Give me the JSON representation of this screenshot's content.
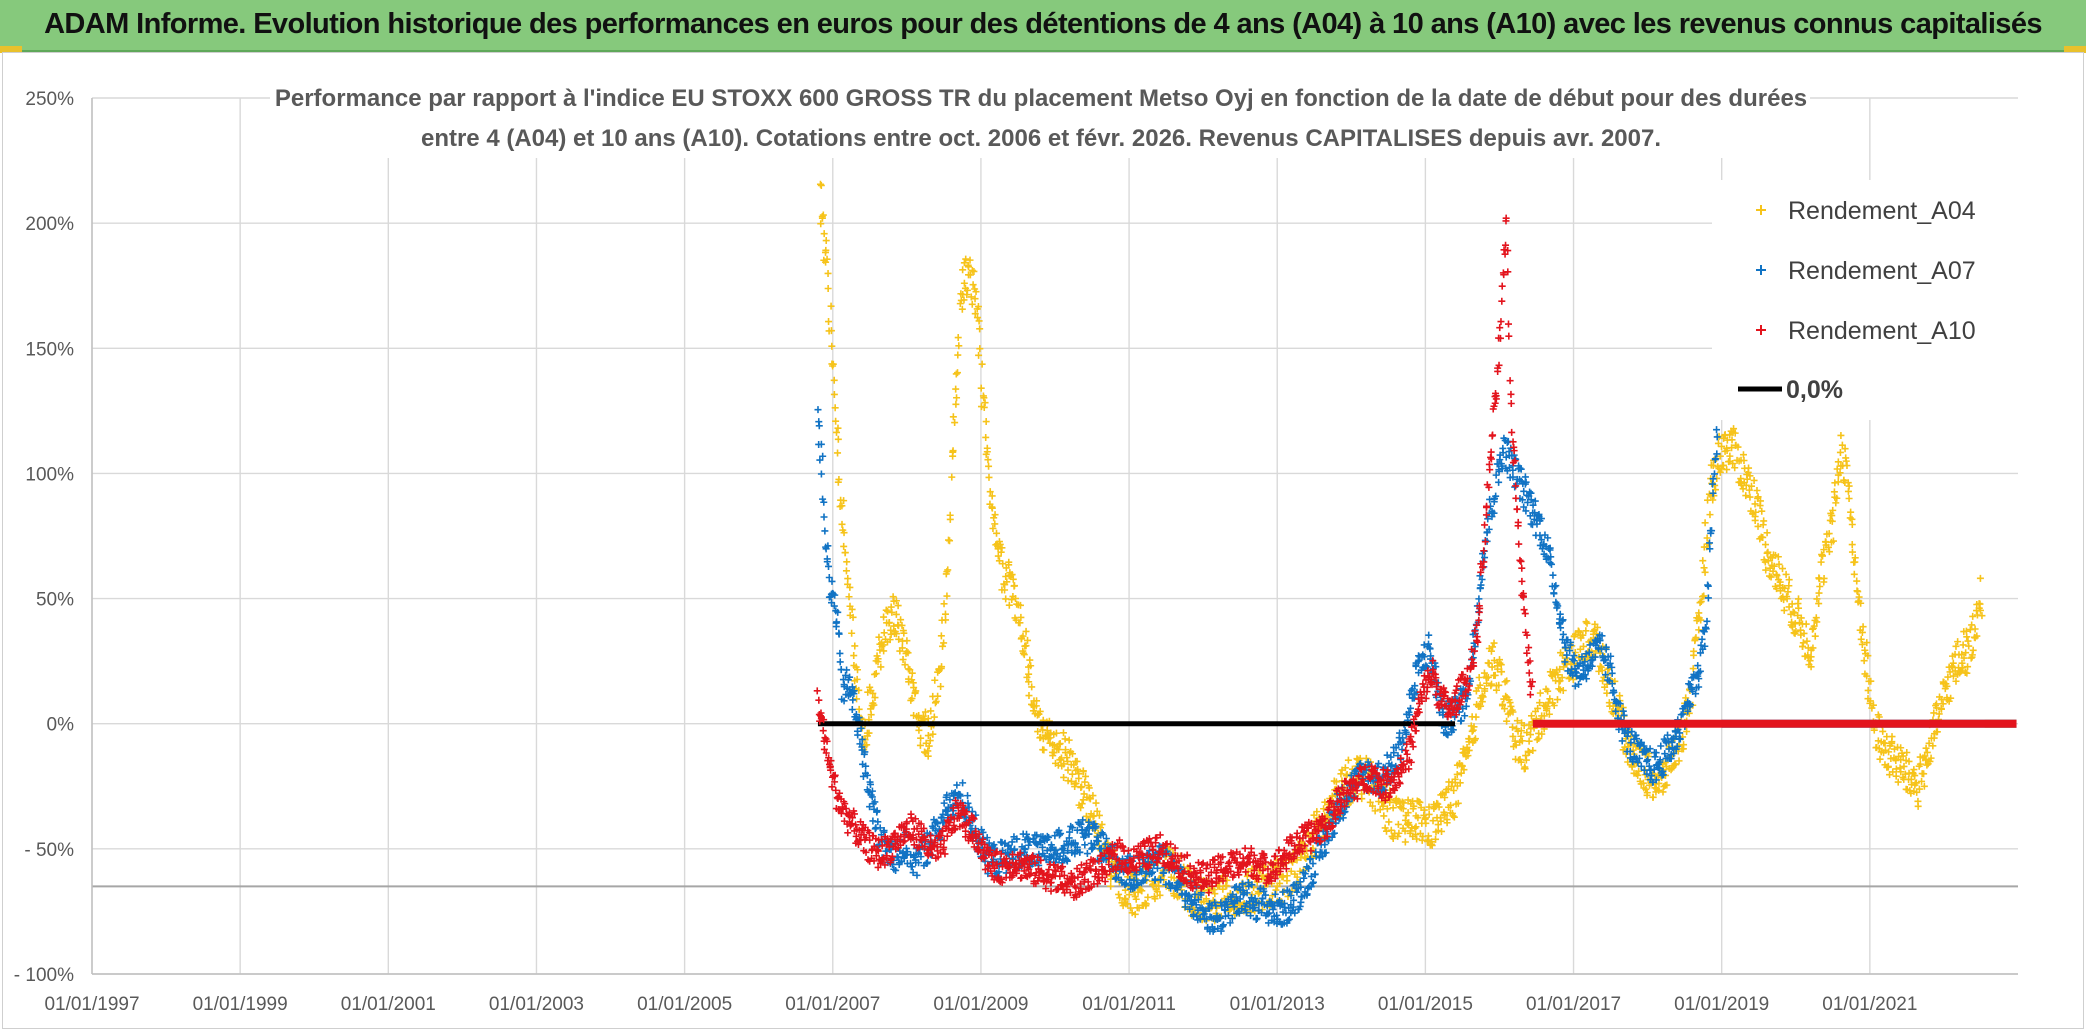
{
  "header": {
    "title": "ADAM Informe. Evolution historique des performances en euros pour des détentions de 4 ans (A04) à 10 ans (A10) avec les revenus connus capitalisés"
  },
  "colors": {
    "banner": "#86c97c",
    "a04": "#f6c31a",
    "a07": "#1173c4",
    "a10": "#e3141d",
    "zero": "#000000",
    "grid": "#d9d9d9"
  },
  "chart_data": {
    "type": "scatter",
    "title_lines": [
      "Performance par rapport à l'indice EU STOXX 600 GROSS TR  du placement Metso Oyj en fonction de la date de début pour des durées",
      "entre 4 (A04) et 10 ans (A10). Cotations entre oct. 2006 et févr. 2026. Revenus CAPITALISES depuis avr. 2007."
    ],
    "x_range": [
      1997.0,
      2023.0
    ],
    "y_range": [
      -100,
      250
    ],
    "y_ticks": [
      {
        "value": 250,
        "label": "250%"
      },
      {
        "value": 200,
        "label": "200%"
      },
      {
        "value": 150,
        "label": "150%"
      },
      {
        "value": 100,
        "label": "100%"
      },
      {
        "value": 50,
        "label": "50%"
      },
      {
        "value": 0,
        "label": "0%"
      },
      {
        "value": -50,
        "label": "- 50%"
      },
      {
        "value": -100,
        "label": "- 100%"
      }
    ],
    "x_ticks": [
      {
        "value": 1997,
        "label": "01/01/1997"
      },
      {
        "value": 1999,
        "label": "01/01/1999"
      },
      {
        "value": 2001,
        "label": "01/01/2001"
      },
      {
        "value": 2003,
        "label": "01/01/2003"
      },
      {
        "value": 2005,
        "label": "01/01/2005"
      },
      {
        "value": 2007,
        "label": "01/01/2007"
      },
      {
        "value": 2009,
        "label": "01/01/2009"
      },
      {
        "value": 2011,
        "label": "01/01/2011"
      },
      {
        "value": 2013,
        "label": "01/01/2013"
      },
      {
        "value": 2015,
        "label": "01/01/2015"
      },
      {
        "value": 2017,
        "label": "01/01/2017"
      },
      {
        "value": 2019,
        "label": "01/01/2019"
      },
      {
        "value": 2021,
        "label": "01/01/2021"
      }
    ],
    "reference_line_value": -65,
    "series": [
      {
        "key": "a04",
        "name": "Rendement_A04",
        "color": "#f6c31a",
        "jitter": 9,
        "points": [
          [
            2006.83,
            210
          ],
          [
            2006.92,
            185
          ],
          [
            2007.0,
            140
          ],
          [
            2007.1,
            95
          ],
          [
            2007.2,
            60
          ],
          [
            2007.3,
            25
          ],
          [
            2007.42,
            -5
          ],
          [
            2007.55,
            15
          ],
          [
            2007.7,
            40
          ],
          [
            2007.85,
            45
          ],
          [
            2008.0,
            25
          ],
          [
            2008.15,
            0
          ],
          [
            2008.3,
            -5
          ],
          [
            2008.45,
            20
          ],
          [
            2008.55,
            60
          ],
          [
            2008.65,
            130
          ],
          [
            2008.75,
            175
          ],
          [
            2008.85,
            180
          ],
          [
            2008.95,
            165
          ],
          [
            2009.05,
            120
          ],
          [
            2009.15,
            85
          ],
          [
            2009.3,
            60
          ],
          [
            2009.45,
            50
          ],
          [
            2009.6,
            30
          ],
          [
            2009.75,
            0
          ],
          [
            2009.9,
            -5
          ],
          [
            2010.05,
            -10
          ],
          [
            2010.2,
            -15
          ],
          [
            2010.35,
            -25
          ],
          [
            2010.5,
            -35
          ],
          [
            2010.65,
            -50
          ],
          [
            2010.8,
            -60
          ],
          [
            2010.95,
            -65
          ],
          [
            2011.1,
            -68
          ],
          [
            2011.3,
            -62
          ],
          [
            2011.5,
            -58
          ],
          [
            2011.7,
            -62
          ],
          [
            2011.9,
            -70
          ],
          [
            2012.1,
            -72
          ],
          [
            2012.3,
            -68
          ],
          [
            2012.5,
            -70
          ],
          [
            2012.7,
            -66
          ],
          [
            2012.9,
            -65
          ],
          [
            2013.1,
            -62
          ],
          [
            2013.3,
            -55
          ],
          [
            2013.5,
            -45
          ],
          [
            2013.7,
            -35
          ],
          [
            2013.9,
            -25
          ],
          [
            2014.1,
            -20
          ],
          [
            2014.3,
            -25
          ],
          [
            2014.5,
            -35
          ],
          [
            2014.7,
            -40
          ],
          [
            2014.9,
            -38
          ],
          [
            2015.05,
            -42
          ],
          [
            2015.25,
            -35
          ],
          [
            2015.45,
            -25
          ],
          [
            2015.6,
            -10
          ],
          [
            2015.75,
            15
          ],
          [
            2015.9,
            25
          ],
          [
            2016.05,
            15
          ],
          [
            2016.2,
            -5
          ],
          [
            2016.35,
            -10
          ],
          [
            2016.5,
            0
          ],
          [
            2016.65,
            10
          ],
          [
            2016.8,
            20
          ],
          [
            2016.95,
            25
          ],
          [
            2017.1,
            30
          ],
          [
            2017.25,
            35
          ],
          [
            2017.4,
            25
          ],
          [
            2017.55,
            10
          ],
          [
            2017.7,
            -5
          ],
          [
            2017.85,
            -15
          ],
          [
            2018.0,
            -20
          ],
          [
            2018.15,
            -25
          ],
          [
            2018.3,
            -15
          ],
          [
            2018.45,
            -5
          ],
          [
            2018.6,
            15
          ],
          [
            2018.75,
            60
          ],
          [
            2018.85,
            95
          ],
          [
            2019.0,
            110
          ],
          [
            2019.15,
            110
          ],
          [
            2019.3,
            100
          ],
          [
            2019.45,
            90
          ],
          [
            2019.6,
            70
          ],
          [
            2019.75,
            60
          ],
          [
            2019.9,
            50
          ],
          [
            2020.05,
            40
          ],
          [
            2020.2,
            30
          ],
          [
            2020.35,
            60
          ],
          [
            2020.5,
            80
          ],
          [
            2020.6,
            110
          ],
          [
            2020.7,
            100
          ],
          [
            2020.8,
            60
          ],
          [
            2020.95,
            25
          ],
          [
            2021.05,
            0
          ],
          [
            2021.2,
            -10
          ],
          [
            2021.35,
            -15
          ],
          [
            2021.5,
            -20
          ],
          [
            2021.65,
            -25
          ],
          [
            2021.8,
            -10
          ],
          [
            2021.95,
            5
          ],
          [
            2022.1,
            20
          ],
          [
            2022.25,
            28
          ],
          [
            2022.35,
            30
          ],
          [
            2022.45,
            45
          ],
          [
            2022.52,
            52
          ]
        ],
        "flat": [
          2022.55,
          2022.98,
          0
        ]
      },
      {
        "key": "a07",
        "name": "Rendement_A07",
        "color": "#1173c4",
        "jitter": 7,
        "points": [
          [
            2006.8,
            125
          ],
          [
            2006.85,
            105
          ],
          [
            2006.9,
            75
          ],
          [
            2006.95,
            55
          ],
          [
            2007.05,
            45
          ],
          [
            2007.12,
            15
          ],
          [
            2007.22,
            15
          ],
          [
            2007.32,
            5
          ],
          [
            2007.42,
            -15
          ],
          [
            2007.55,
            -35
          ],
          [
            2007.7,
            -50
          ],
          [
            2007.85,
            -52
          ],
          [
            2008.0,
            -50
          ],
          [
            2008.15,
            -55
          ],
          [
            2008.3,
            -48
          ],
          [
            2008.45,
            -40
          ],
          [
            2008.6,
            -32
          ],
          [
            2008.75,
            -30
          ],
          [
            2008.9,
            -40
          ],
          [
            2009.05,
            -52
          ],
          [
            2009.2,
            -55
          ],
          [
            2009.4,
            -52
          ],
          [
            2009.6,
            -50
          ],
          [
            2009.8,
            -52
          ],
          [
            2010.0,
            -50
          ],
          [
            2010.2,
            -48
          ],
          [
            2010.4,
            -45
          ],
          [
            2010.6,
            -48
          ],
          [
            2010.8,
            -55
          ],
          [
            2011.0,
            -60
          ],
          [
            2011.2,
            -58
          ],
          [
            2011.4,
            -55
          ],
          [
            2011.6,
            -60
          ],
          [
            2011.8,
            -68
          ],
          [
            2012.0,
            -75
          ],
          [
            2012.2,
            -78
          ],
          [
            2012.4,
            -72
          ],
          [
            2012.6,
            -70
          ],
          [
            2012.8,
            -72
          ],
          [
            2013.0,
            -75
          ],
          [
            2013.2,
            -72
          ],
          [
            2013.4,
            -62
          ],
          [
            2013.6,
            -50
          ],
          [
            2013.8,
            -35
          ],
          [
            2014.0,
            -25
          ],
          [
            2014.2,
            -20
          ],
          [
            2014.4,
            -22
          ],
          [
            2014.6,
            -15
          ],
          [
            2014.75,
            0
          ],
          [
            2014.85,
            15
          ],
          [
            2014.95,
            25
          ],
          [
            2015.05,
            30
          ],
          [
            2015.15,
            15
          ],
          [
            2015.25,
            0
          ],
          [
            2015.4,
            5
          ],
          [
            2015.55,
            10
          ],
          [
            2015.65,
            30
          ],
          [
            2015.75,
            60
          ],
          [
            2015.85,
            80
          ],
          [
            2015.95,
            95
          ],
          [
            2016.05,
            110
          ],
          [
            2016.15,
            105
          ],
          [
            2016.3,
            95
          ],
          [
            2016.45,
            85
          ],
          [
            2016.6,
            75
          ],
          [
            2016.75,
            55
          ],
          [
            2016.9,
            30
          ],
          [
            2017.05,
            20
          ],
          [
            2017.2,
            25
          ],
          [
            2017.35,
            30
          ],
          [
            2017.5,
            20
          ],
          [
            2017.65,
            0
          ],
          [
            2017.8,
            -10
          ],
          [
            2017.95,
            -15
          ],
          [
            2018.1,
            -18
          ],
          [
            2018.25,
            -12
          ],
          [
            2018.4,
            -5
          ],
          [
            2018.55,
            10
          ],
          [
            2018.7,
            20
          ],
          [
            2018.8,
            45
          ],
          [
            2018.9,
            100
          ],
          [
            2018.95,
            120
          ]
        ],
        "flat": [
          2019.0,
          2022.98,
          0
        ]
      },
      {
        "key": "a10",
        "name": "Rendement_A10",
        "color": "#e3141d",
        "jitter": 6,
        "points": [
          [
            2006.8,
            10
          ],
          [
            2006.88,
            -5
          ],
          [
            2006.95,
            -15
          ],
          [
            2007.05,
            -28
          ],
          [
            2007.15,
            -35
          ],
          [
            2007.3,
            -42
          ],
          [
            2007.45,
            -48
          ],
          [
            2007.6,
            -52
          ],
          [
            2007.75,
            -50
          ],
          [
            2007.9,
            -45
          ],
          [
            2008.05,
            -42
          ],
          [
            2008.2,
            -45
          ],
          [
            2008.35,
            -52
          ],
          [
            2008.5,
            -48
          ],
          [
            2008.6,
            -40
          ],
          [
            2008.7,
            -35
          ],
          [
            2008.8,
            -40
          ],
          [
            2008.95,
            -45
          ],
          [
            2009.1,
            -55
          ],
          [
            2009.25,
            -58
          ],
          [
            2009.45,
            -55
          ],
          [
            2009.65,
            -58
          ],
          [
            2009.85,
            -60
          ],
          [
            2010.05,
            -62
          ],
          [
            2010.25,
            -65
          ],
          [
            2010.45,
            -60
          ],
          [
            2010.65,
            -58
          ],
          [
            2010.85,
            -52
          ],
          [
            2011.05,
            -55
          ],
          [
            2011.25,
            -52
          ],
          [
            2011.45,
            -50
          ],
          [
            2011.65,
            -55
          ],
          [
            2011.85,
            -60
          ],
          [
            2012.05,
            -62
          ],
          [
            2012.25,
            -58
          ],
          [
            2012.45,
            -56
          ],
          [
            2012.65,
            -55
          ],
          [
            2012.85,
            -58
          ],
          [
            2013.05,
            -55
          ],
          [
            2013.25,
            -48
          ],
          [
            2013.45,
            -45
          ],
          [
            2013.65,
            -40
          ],
          [
            2013.85,
            -30
          ],
          [
            2014.05,
            -25
          ],
          [
            2014.25,
            -20
          ],
          [
            2014.45,
            -25
          ],
          [
            2014.65,
            -20
          ],
          [
            2014.8,
            -10
          ],
          [
            2014.9,
            5
          ],
          [
            2015.0,
            15
          ],
          [
            2015.1,
            20
          ],
          [
            2015.2,
            10
          ],
          [
            2015.35,
            5
          ],
          [
            2015.5,
            15
          ],
          [
            2015.6,
            20
          ],
          [
            2015.7,
            35
          ],
          [
            2015.8,
            75
          ],
          [
            2015.9,
            115
          ],
          [
            2015.98,
            140
          ],
          [
            2016.05,
            175
          ],
          [
            2016.1,
            200
          ],
          [
            2016.15,
            130
          ],
          [
            2016.22,
            95
          ],
          [
            2016.3,
            60
          ],
          [
            2016.38,
            30
          ],
          [
            2016.45,
            10
          ]
        ],
        "flat": [
          2016.45,
          2022.98,
          0
        ]
      },
      {
        "key": "zero",
        "name": "0,0%",
        "color": "#000000",
        "line": [
          2006.8,
          2015.4,
          0
        ]
      }
    ]
  }
}
